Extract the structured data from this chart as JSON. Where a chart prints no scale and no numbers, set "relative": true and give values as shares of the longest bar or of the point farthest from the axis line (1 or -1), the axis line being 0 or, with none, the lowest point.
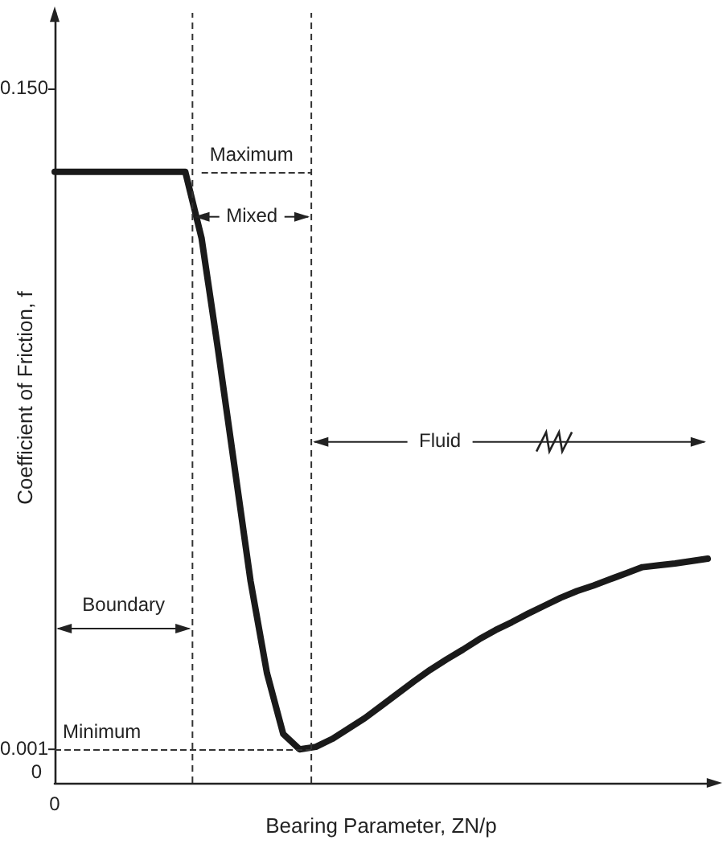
{
  "chart_data": {
    "type": "line",
    "relative": true,
    "xlabel": "Bearing Parameter, ZN/p",
    "ylabel": "Coefficient of Friction, f",
    "categories": [
      null,
      null,
      null,
      null,
      null,
      null,
      null,
      null,
      null,
      null,
      null,
      null,
      null,
      null,
      null,
      null,
      null,
      null,
      null,
      null,
      null,
      null,
      null,
      null,
      null,
      null,
      null,
      null,
      null,
      null,
      null,
      null,
      null,
      null,
      null,
      null,
      null,
      null,
      null,
      null,
      null
    ],
    "values": [
      1,
      1,
      1,
      1,
      1,
      1,
      1,
      1,
      1,
      0.891,
      0.71,
      0.52,
      0.33,
      0.18,
      0.08,
      0.055,
      0.059,
      0.072,
      0.089,
      0.106,
      0.126,
      0.146,
      0.166,
      0.185,
      0.202,
      0.218,
      0.235,
      0.25,
      0.263,
      0.277,
      0.29,
      0.303,
      0.314,
      0.323,
      0.333,
      0.343,
      0.353,
      0.356,
      0.359,
      0.363,
      0.367
    ],
    "color": "#1a1a1a",
    "marker": "none",
    "line_style": "solid",
    "ref_lines": [
      {
        "axis": "y",
        "value": 1,
        "label": "Maximum",
        "line_style": "dashed"
      },
      {
        "axis": "y",
        "value": 0.055,
        "label": "Minimum",
        "line_style": "dashed"
      }
    ],
    "annotations": [
      "0.150",
      "0.001",
      "0",
      "Boundary",
      "Mixed",
      "Fluid",
      "0"
    ]
  }
}
